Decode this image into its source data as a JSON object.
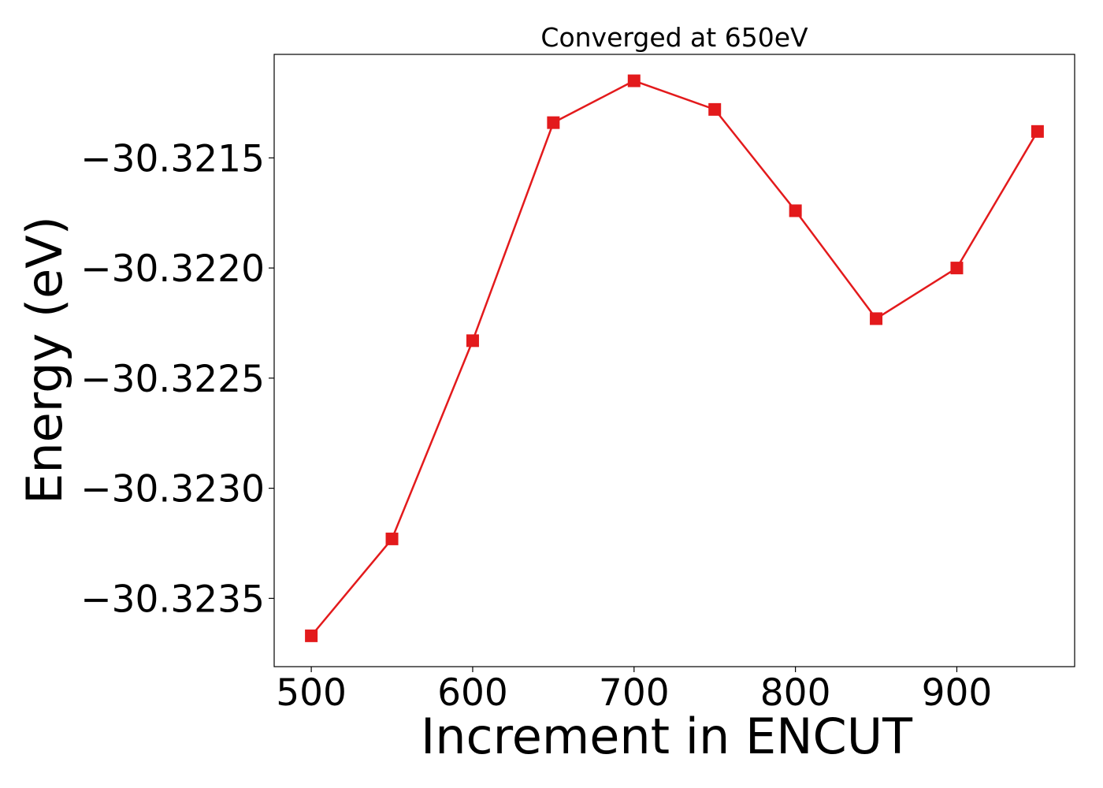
{
  "chart_data": {
    "type": "line",
    "title": "Converged at 650eV",
    "xlabel": "Increment in ENCUT",
    "ylabel": "Energy (eV)",
    "x": [
      500,
      550,
      600,
      650,
      700,
      750,
      800,
      850,
      900,
      950
    ],
    "series": [
      {
        "values": [
          -30.32367,
          -30.32323,
          -30.32233,
          -30.32134,
          -30.32115,
          -30.32128,
          -30.32174,
          -30.32223,
          -30.322,
          -30.32138
        ],
        "color": "#e31a1c",
        "marker": "square"
      }
    ],
    "xlim": [
      477,
      973
    ],
    "ylim": [
      -30.32381,
      -30.32103
    ],
    "xticks": [
      500,
      600,
      700,
      800,
      900
    ],
    "xtick_labels": [
      "500",
      "600",
      "700",
      "800",
      "900"
    ],
    "yticks": [
      -30.3215,
      -30.322,
      -30.3225,
      -30.323,
      -30.3235
    ],
    "ytick_labels": [
      "−30.3215",
      "−30.3220",
      "−30.3225",
      "−30.3230",
      "−30.3235"
    ],
    "grid": false,
    "legend": "none"
  }
}
